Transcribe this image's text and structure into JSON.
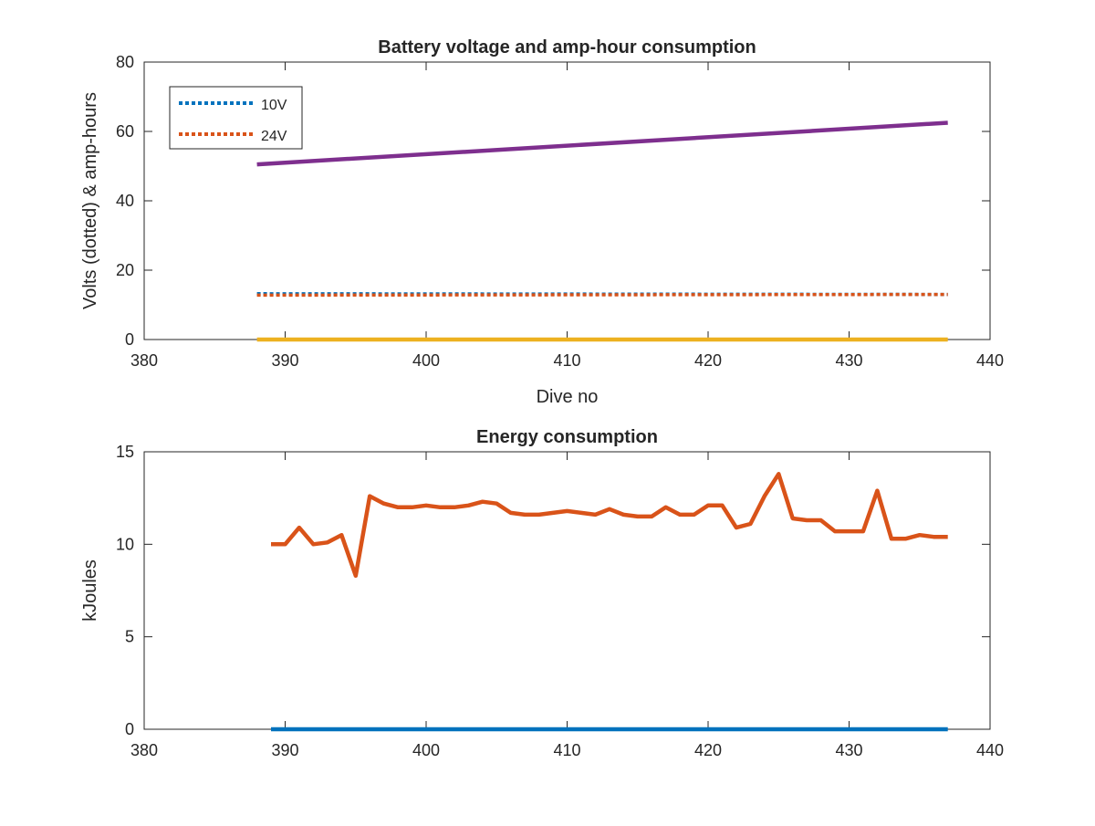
{
  "chart_data": [
    {
      "type": "line",
      "title": "Battery voltage and amp-hour consumption",
      "xlabel": "Dive no",
      "ylabel": "Volts (dotted) & amp-hours",
      "xlim": [
        380,
        440
      ],
      "ylim": [
        0,
        80
      ],
      "xticks": [
        380,
        390,
        400,
        410,
        420,
        430,
        440
      ],
      "yticks": [
        0,
        20,
        40,
        60,
        80
      ],
      "legend_position": "top-left",
      "series": [
        {
          "name": "10V",
          "style": "dotted",
          "color": "#0072BD",
          "x": [
            388,
            437
          ],
          "y": [
            13.2,
            13.0
          ]
        },
        {
          "name": "24V",
          "style": "dotted",
          "color": "#D95319",
          "x": [
            388,
            437
          ],
          "y": [
            12.8,
            13.0
          ]
        },
        {
          "style": "solid",
          "color": "#7E2F8E",
          "x": [
            388,
            437
          ],
          "y": [
            50.5,
            62.5
          ]
        },
        {
          "style": "solid",
          "color": "#EDB120",
          "x": [
            388,
            437
          ],
          "y": [
            0,
            0
          ]
        }
      ]
    },
    {
      "type": "line",
      "title": "Energy consumption",
      "xlabel": "",
      "ylabel": "kJoules",
      "xlim": [
        380,
        440
      ],
      "ylim": [
        0,
        15
      ],
      "xticks": [
        380,
        390,
        400,
        410,
        420,
        430,
        440
      ],
      "yticks": [
        0,
        5,
        10,
        15
      ],
      "series": [
        {
          "style": "solid",
          "color": "#D95319",
          "x": [
            389,
            390,
            391,
            392,
            393,
            394,
            395,
            396,
            397,
            398,
            399,
            400,
            401,
            402,
            403,
            404,
            405,
            406,
            407,
            408,
            409,
            410,
            411,
            412,
            413,
            414,
            415,
            416,
            417,
            418,
            419,
            420,
            421,
            422,
            423,
            424,
            425,
            426,
            427,
            428,
            429,
            430,
            431,
            432,
            433,
            434,
            435,
            436,
            437
          ],
          "y": [
            10.0,
            10.0,
            10.9,
            10.0,
            10.1,
            10.5,
            8.3,
            12.6,
            12.2,
            12.0,
            12.0,
            12.1,
            12.0,
            12.0,
            12.1,
            12.3,
            12.2,
            11.7,
            11.6,
            11.6,
            11.7,
            11.8,
            11.7,
            11.6,
            11.9,
            11.6,
            11.5,
            11.5,
            12.0,
            11.6,
            11.6,
            12.1,
            12.1,
            10.9,
            11.1,
            12.6,
            13.8,
            11.4,
            11.3,
            11.3,
            10.7,
            10.7,
            10.7,
            12.9,
            10.3,
            10.3,
            10.5,
            10.4,
            10.4
          ]
        },
        {
          "style": "solid",
          "color": "#0072BD",
          "x": [
            389,
            437
          ],
          "y": [
            0,
            0
          ]
        }
      ]
    }
  ]
}
